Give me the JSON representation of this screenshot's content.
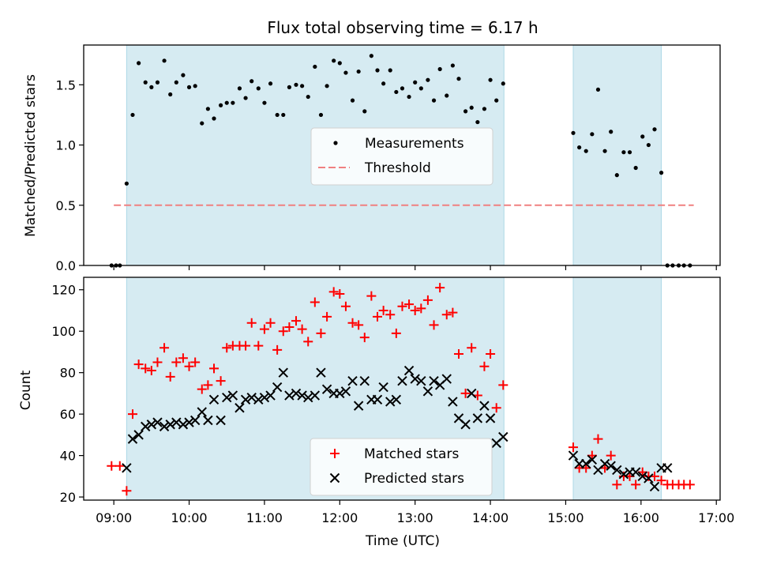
{
  "chart_data": [
    {
      "type": "scatter",
      "panel": "top",
      "title": "Flux total observing time = 6.17 h",
      "xlabel": "",
      "ylabel": "Matched/Predicted stars",
      "xlim": [
        8.6,
        17.05
      ],
      "ylim": [
        0,
        1.83
      ],
      "yticks": [
        0.0,
        0.5,
        1.0,
        1.5
      ],
      "yticklabels": [
        "0.0",
        "0.5",
        "1.0",
        "1.5"
      ],
      "grid": false,
      "legend_position": "center-right",
      "observing_windows": [
        [
          9.17,
          14.18
        ],
        [
          15.1,
          16.27
        ]
      ],
      "threshold": {
        "name": "Threshold",
        "value": 0.5,
        "x_range": [
          9.0,
          16.7
        ],
        "color": "#f08080"
      },
      "series": [
        {
          "name": "Measurements",
          "marker": "dot",
          "color": "#000000",
          "x": [
            8.97,
            9.03,
            9.08,
            9.17,
            9.25,
            9.33,
            9.42,
            9.5,
            9.58,
            9.67,
            9.75,
            9.83,
            9.92,
            10.0,
            10.08,
            10.17,
            10.25,
            10.33,
            10.42,
            10.5,
            10.58,
            10.67,
            10.75,
            10.83,
            10.92,
            11.0,
            11.08,
            11.17,
            11.25,
            11.33,
            11.42,
            11.5,
            11.58,
            11.67,
            11.75,
            11.83,
            11.92,
            12.0,
            12.08,
            12.17,
            12.25,
            12.33,
            12.42,
            12.5,
            12.58,
            12.67,
            12.75,
            12.83,
            12.92,
            13.0,
            13.08,
            13.17,
            13.25,
            13.33,
            13.42,
            13.5,
            13.58,
            13.67,
            13.75,
            13.83,
            13.92,
            14.0,
            14.08,
            14.17,
            15.1,
            15.18,
            15.27,
            15.35,
            15.43,
            15.52,
            15.6,
            15.68,
            15.77,
            15.85,
            15.93,
            16.02,
            16.1,
            16.18,
            16.27,
            16.35,
            16.42,
            16.5,
            16.57,
            16.65
          ],
          "y": [
            0.0,
            0.0,
            0.0,
            0.68,
            1.25,
            1.68,
            1.52,
            1.48,
            1.52,
            1.7,
            1.42,
            1.52,
            1.58,
            1.48,
            1.49,
            1.18,
            1.3,
            1.22,
            1.33,
            1.35,
            1.35,
            1.47,
            1.39,
            1.53,
            1.47,
            1.35,
            1.51,
            1.25,
            1.25,
            1.48,
            1.5,
            1.49,
            1.4,
            1.65,
            1.25,
            1.49,
            1.7,
            1.68,
            1.6,
            1.37,
            1.61,
            1.28,
            1.74,
            1.62,
            1.51,
            1.62,
            1.44,
            1.47,
            1.4,
            1.52,
            1.47,
            1.54,
            1.37,
            1.63,
            1.41,
            1.66,
            1.55,
            1.28,
            1.31,
            1.19,
            1.3,
            1.54,
            1.37,
            1.51,
            1.1,
            0.98,
            0.95,
            1.09,
            1.46,
            0.95,
            1.11,
            0.75,
            0.94,
            0.94,
            0.81,
            1.07,
            1.0,
            1.13,
            0.77,
            0.0,
            0.0,
            0.0,
            0.0,
            0.0
          ]
        }
      ]
    },
    {
      "type": "scatter",
      "panel": "bottom",
      "title": "",
      "xlabel": "Time (UTC)",
      "ylabel": "Count",
      "xlim": [
        8.6,
        17.05
      ],
      "ylim": [
        18.5,
        126
      ],
      "xticks": [
        9,
        10,
        11,
        12,
        13,
        14,
        15,
        16,
        17
      ],
      "xticklabels": [
        "09:00",
        "10:00",
        "11:00",
        "12:00",
        "13:00",
        "14:00",
        "15:00",
        "16:00",
        "17:00"
      ],
      "yticks": [
        20,
        40,
        60,
        80,
        100,
        120
      ],
      "yticklabels": [
        "20",
        "40",
        "60",
        "80",
        "100",
        "120"
      ],
      "grid": false,
      "legend_position": "lower-center-right",
      "observing_windows": [
        [
          9.17,
          14.18
        ],
        [
          15.1,
          16.27
        ]
      ],
      "series": [
        {
          "name": "Matched stars",
          "marker": "plus",
          "color": "#ff0000",
          "x": [
            8.97,
            9.08,
            9.17,
            9.25,
            9.33,
            9.42,
            9.5,
            9.58,
            9.67,
            9.75,
            9.83,
            9.92,
            10.0,
            10.08,
            10.17,
            10.25,
            10.33,
            10.42,
            10.5,
            10.58,
            10.67,
            10.75,
            10.83,
            10.92,
            11.0,
            11.08,
            11.17,
            11.25,
            11.33,
            11.42,
            11.5,
            11.58,
            11.67,
            11.75,
            11.83,
            11.92,
            12.0,
            12.08,
            12.17,
            12.25,
            12.33,
            12.42,
            12.5,
            12.58,
            12.67,
            12.75,
            12.83,
            12.92,
            13.0,
            13.08,
            13.17,
            13.25,
            13.33,
            13.42,
            13.5,
            13.58,
            13.67,
            13.75,
            13.83,
            13.92,
            14.0,
            14.08,
            14.17,
            15.1,
            15.18,
            15.27,
            15.35,
            15.43,
            15.52,
            15.6,
            15.68,
            15.77,
            15.85,
            15.93,
            16.02,
            16.1,
            16.18,
            16.27,
            16.35,
            16.42,
            16.5,
            16.57,
            16.65
          ],
          "y": [
            35,
            35,
            23,
            60,
            84,
            82,
            81,
            85,
            92,
            78,
            85,
            87,
            83,
            85,
            72,
            74,
            82,
            76,
            92,
            93,
            93,
            93,
            104,
            93,
            101,
            104,
            91,
            100,
            102,
            105,
            101,
            95,
            114,
            99,
            107,
            119,
            118,
            112,
            104,
            103,
            97,
            117,
            107,
            110,
            108,
            99,
            112,
            113,
            110,
            111,
            115,
            103,
            121,
            108,
            109,
            89,
            70,
            92,
            69,
            83,
            89,
            63,
            74,
            44,
            34,
            34,
            40,
            48,
            34,
            40,
            26,
            30,
            30,
            26,
            32,
            30,
            30,
            28,
            26,
            26,
            26,
            26,
            26
          ]
        },
        {
          "name": "Predicted stars",
          "marker": "x",
          "color": "#000000",
          "x": [
            9.17,
            9.25,
            9.33,
            9.42,
            9.5,
            9.58,
            9.67,
            9.75,
            9.83,
            9.92,
            10.0,
            10.08,
            10.17,
            10.25,
            10.33,
            10.42,
            10.5,
            10.58,
            10.67,
            10.75,
            10.83,
            10.92,
            11.0,
            11.08,
            11.17,
            11.25,
            11.33,
            11.42,
            11.5,
            11.58,
            11.67,
            11.75,
            11.83,
            11.92,
            12.0,
            12.08,
            12.17,
            12.25,
            12.33,
            12.42,
            12.5,
            12.58,
            12.67,
            12.75,
            12.83,
            12.92,
            13.0,
            13.08,
            13.17,
            13.25,
            13.33,
            13.42,
            13.5,
            13.58,
            13.67,
            13.75,
            13.83,
            13.92,
            14.0,
            14.08,
            14.17,
            15.1,
            15.18,
            15.27,
            15.35,
            15.43,
            15.52,
            15.6,
            15.68,
            15.77,
            15.85,
            15.93,
            16.02,
            16.1,
            16.18,
            16.27,
            16.35
          ],
          "y": [
            34,
            48,
            50,
            54,
            55,
            56,
            54,
            55,
            56,
            55,
            56,
            57,
            61,
            57,
            67,
            57,
            68,
            69,
            63,
            67,
            68,
            67,
            68,
            69,
            73,
            80,
            69,
            70,
            69,
            68,
            69,
            80,
            72,
            70,
            70,
            71,
            76,
            64,
            76,
            67,
            67,
            73,
            66,
            67,
            76,
            81,
            77,
            76,
            71,
            76,
            74,
            77,
            66,
            58,
            55,
            70,
            58,
            64,
            58,
            46,
            49,
            40,
            36,
            36,
            38,
            33,
            36,
            35,
            33,
            31,
            32,
            32,
            30,
            29,
            25,
            34,
            34
          ]
        }
      ]
    }
  ]
}
